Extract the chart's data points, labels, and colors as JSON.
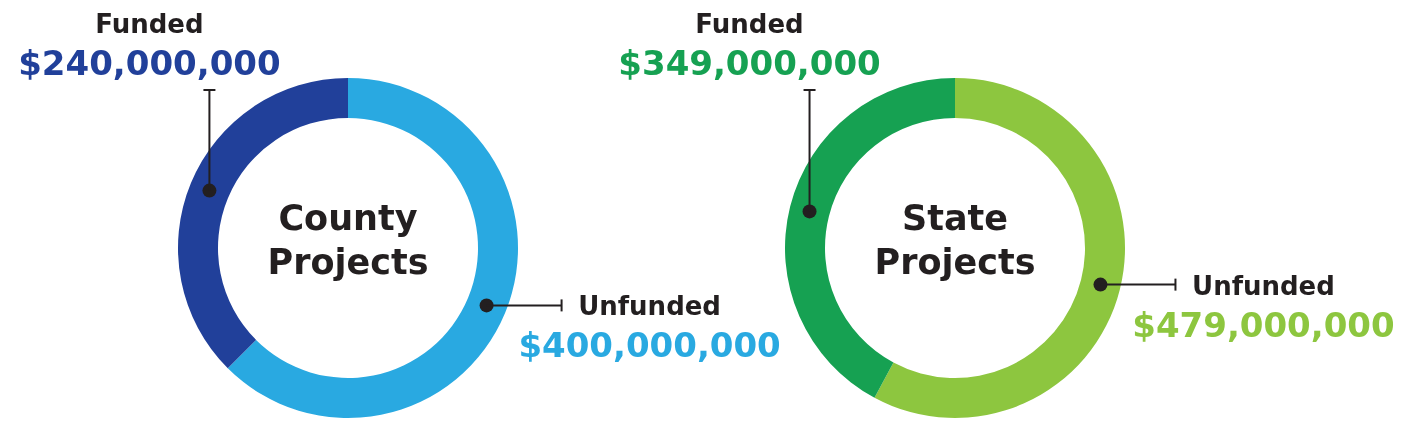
{
  "chart_data": [
    {
      "type": "donut",
      "title": "County Projects",
      "categories": [
        "Unfunded",
        "Funded"
      ],
      "values": [
        400000000,
        240000000
      ],
      "colors": [
        "#29a9e1",
        "#21409a"
      ],
      "value_labels": [
        "$400,000,000",
        "$240,000,000"
      ]
    },
    {
      "type": "donut",
      "title": "State Projects",
      "categories": [
        "Unfunded",
        "Funded"
      ],
      "values": [
        479000000,
        349000000
      ],
      "colors": [
        "#8dc63f",
        "#16a152"
      ],
      "value_labels": [
        "$479,000,000",
        "$349,000,000"
      ]
    }
  ]
}
